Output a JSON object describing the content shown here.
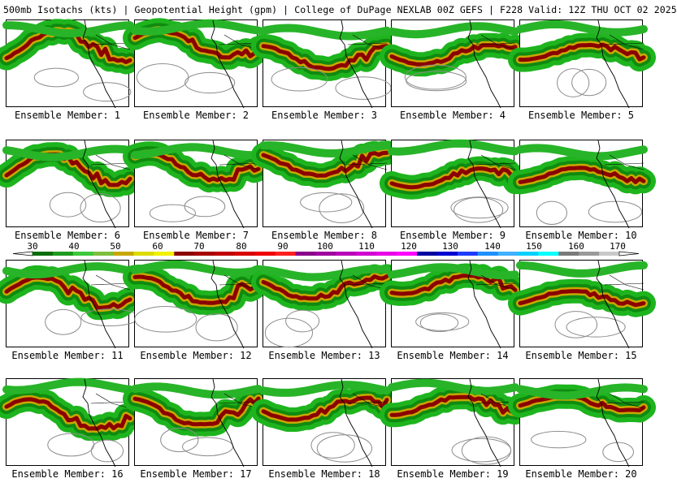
{
  "header": {
    "title": "500mb Isotachs (kts) | Geopotential Height (gpm) | College of DuPage NEXLAB   00Z GEFS | F228 Valid: 12Z THU OCT 02 2025"
  },
  "colors": {
    "bg": "#ffffff",
    "height_contour": "#8c8c8c",
    "coastline": "#000000"
  },
  "panels": [
    {
      "label": "Ensemble Member: 1"
    },
    {
      "label": "Ensemble Member: 2"
    },
    {
      "label": "Ensemble Member: 3"
    },
    {
      "label": "Ensemble Member: 4"
    },
    {
      "label": "Ensemble Member: 5"
    },
    {
      "label": "Ensemble Member: 6"
    },
    {
      "label": "Ensemble Member: 7"
    },
    {
      "label": "Ensemble Member: 8"
    },
    {
      "label": "Ensemble Member: 9"
    },
    {
      "label": "Ensemble Member: 10"
    },
    {
      "label": "Ensemble Member: 11"
    },
    {
      "label": "Ensemble Member: 12"
    },
    {
      "label": "Ensemble Member: 13"
    },
    {
      "label": "Ensemble Member: 14"
    },
    {
      "label": "Ensemble Member: 15"
    },
    {
      "label": "Ensemble Member: 16"
    },
    {
      "label": "Ensemble Member: 17"
    },
    {
      "label": "Ensemble Member: 18"
    },
    {
      "label": "Ensemble Member: 19"
    },
    {
      "label": "Ensemble Member: 20"
    }
  ],
  "legend": {
    "labels": [
      "30",
      "40",
      "50",
      "60",
      "70",
      "80",
      "90",
      "100",
      "110",
      "120",
      "130",
      "140",
      "150",
      "160",
      "170"
    ],
    "colors": [
      "#0a6e0a",
      "#1e9a1e",
      "#3cc83c",
      "#7fbf3f",
      "#c8a800",
      "#dcdc00",
      "#f0f000",
      "#8b0000",
      "#a80000",
      "#c00000",
      "#d80000",
      "#f00000",
      "#ff2020",
      "#8a008a",
      "#a000a0",
      "#b800b8",
      "#d000d0",
      "#e800e8",
      "#ff00ff",
      "#0000a0",
      "#0000d0",
      "#1e3cff",
      "#1e90ff",
      "#40b0ff",
      "#00d0ff",
      "#00ffff",
      "#7a7a7a",
      "#9a9a9a",
      "#c8c8c8"
    ]
  }
}
